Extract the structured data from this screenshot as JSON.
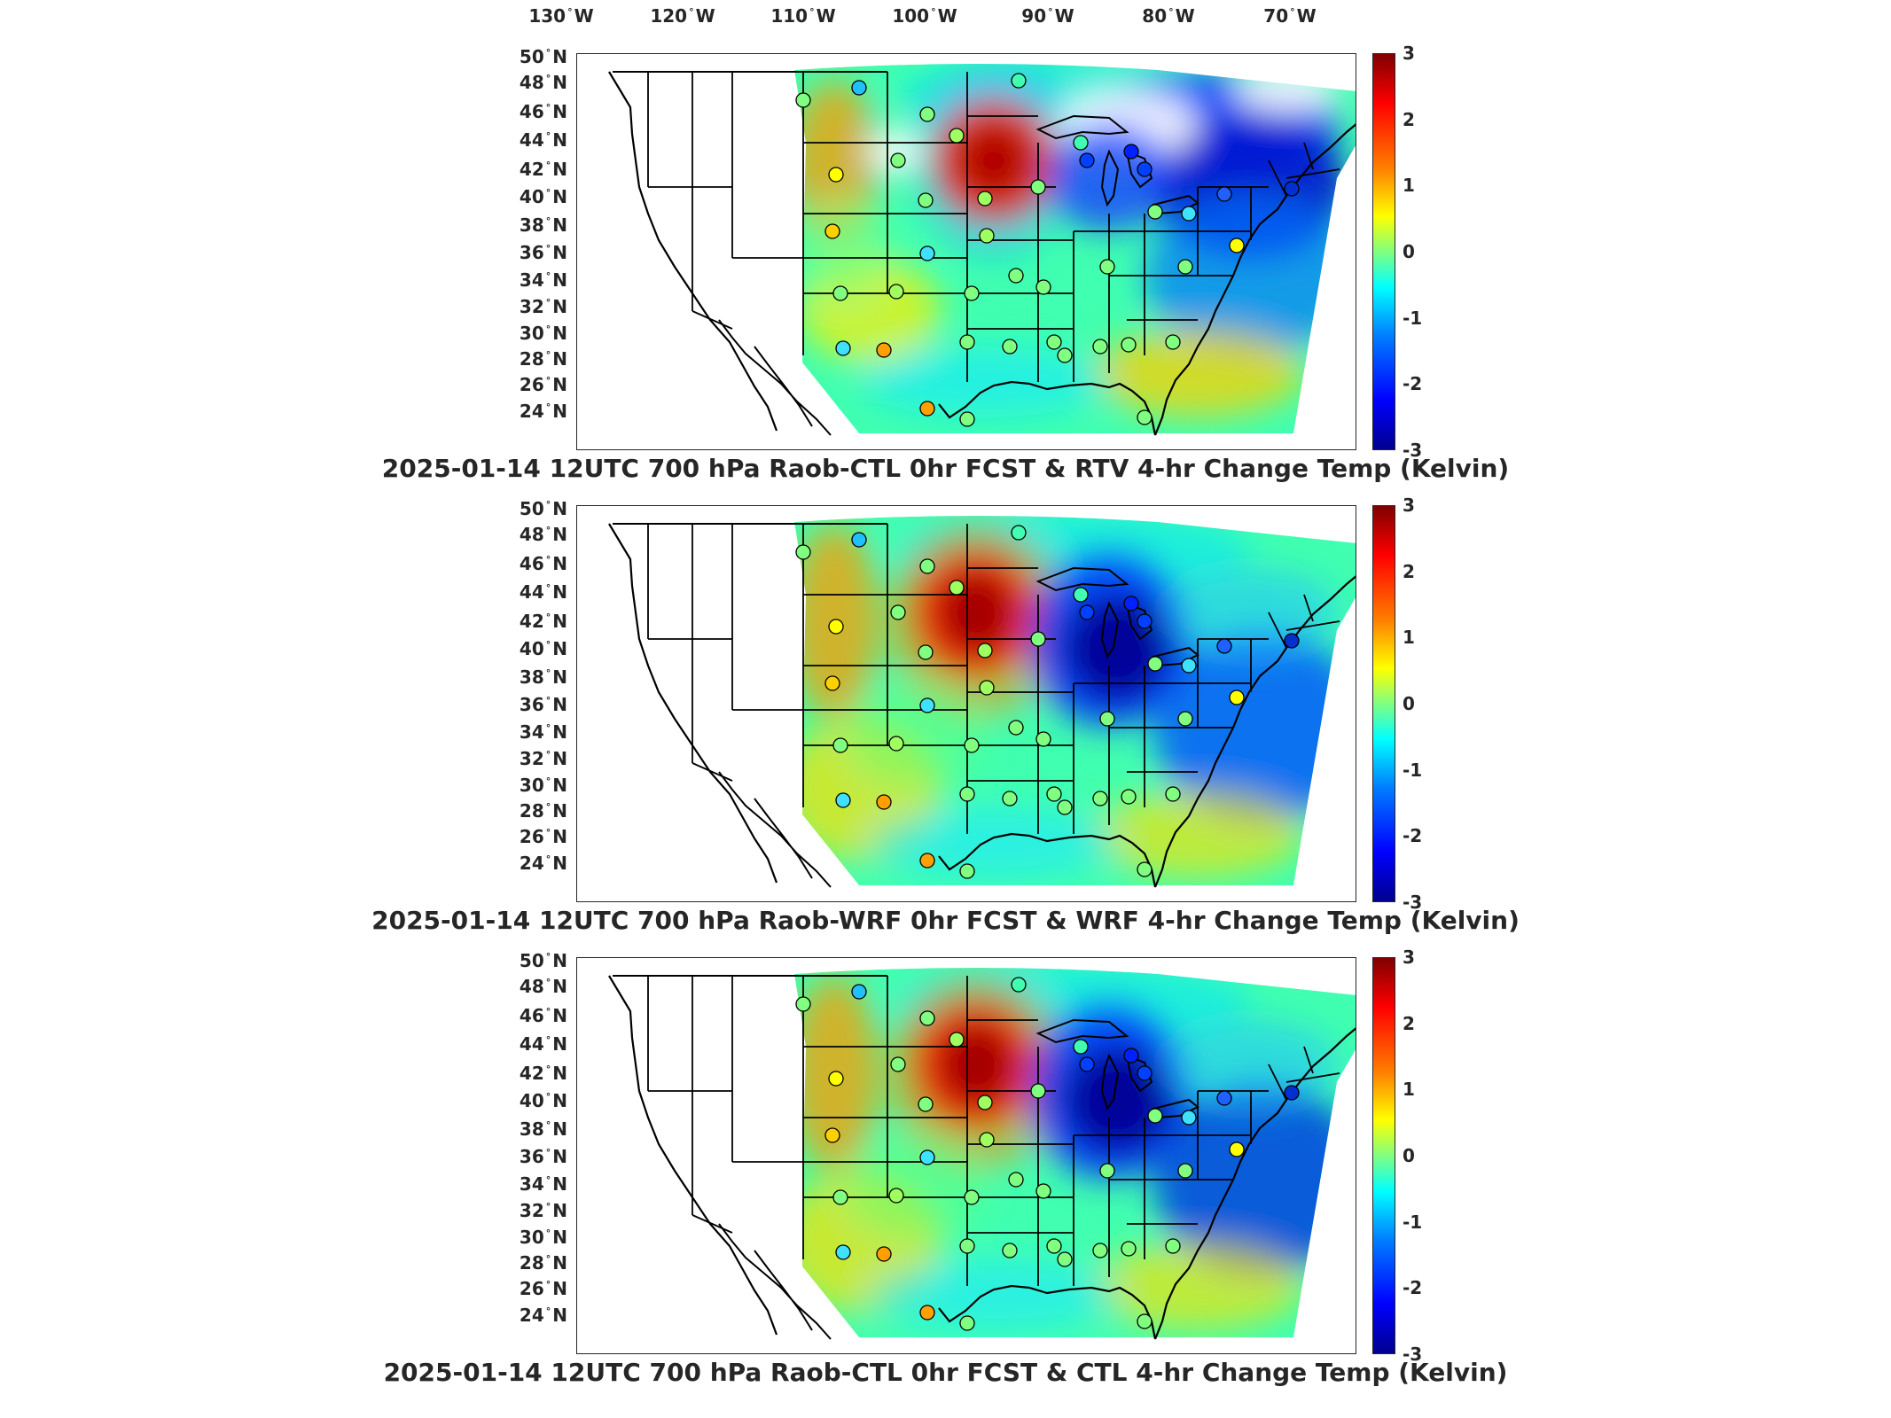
{
  "lon_ticks": [
    "130",
    "120",
    "110",
    "100",
    "90",
    "80",
    "70"
  ],
  "lon_hemisphere": "W",
  "lat_ticks": [
    "50",
    "48",
    "46",
    "44",
    "42",
    "40",
    "38",
    "36",
    "34",
    "32",
    "30",
    "28",
    "26",
    "24"
  ],
  "lat_hemisphere": "N",
  "colorbar": {
    "min": -3,
    "max": 3,
    "ticks": [
      "3",
      "2",
      "1",
      "0",
      "-1",
      "-2",
      "-3"
    ],
    "colormap": "jet",
    "colors": [
      "#00008f",
      "#0000ff",
      "#00ffff",
      "#ffff00",
      "#ff0000",
      "#800000"
    ]
  },
  "panels": [
    {
      "title": "2025-01-14 12UTC 700 hPa Raob-CTL 0hr FCST & RTV 4-hr Change Temp (Kelvin)",
      "variant": "rtv"
    },
    {
      "title": "2025-01-14 12UTC 700 hPa Raob-WRF 0hr FCST & WRF 4-hr Change Temp (Kelvin)",
      "variant": "wrf"
    },
    {
      "title": "2025-01-14 12UTC 700 hPa Raob-CTL 0hr FCST & CTL 4-hr Change Temp (Kelvin)",
      "variant": "ctl"
    }
  ],
  "raob_marker_color_legend": "marker fill = Raob minus model difference on same colorbar"
}
